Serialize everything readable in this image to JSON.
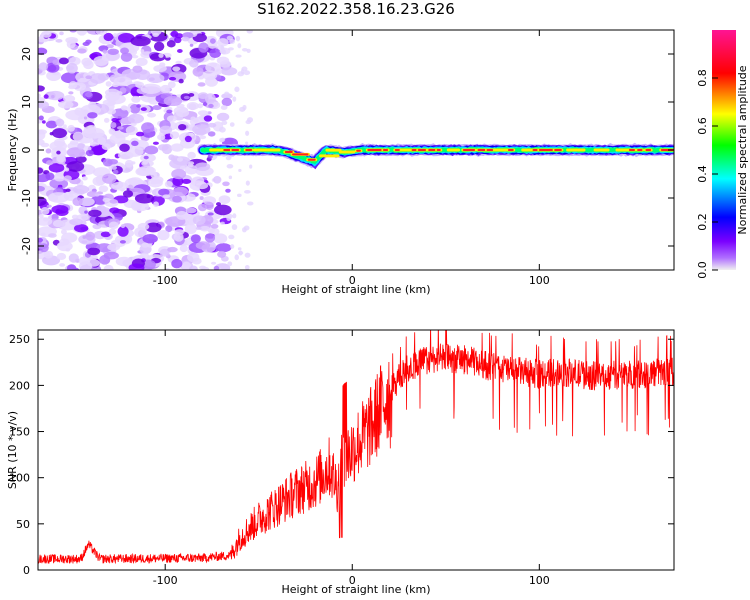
{
  "title": "S162.2022.358.16.23.G26",
  "chart_data": [
    {
      "type": "heatmap",
      "xlabel": "Height of straight line (km)",
      "ylabel": "Frequency (Hz)",
      "xlim": [
        -168,
        172
      ],
      "ylim": [
        -25,
        25
      ],
      "x_ticks": [
        "-100",
        "0",
        "100"
      ],
      "y_ticks": [
        "20",
        "10",
        "0",
        "-10",
        "-20"
      ],
      "colorbar": {
        "label": "Normalized spectral amplitude",
        "range": [
          0.0,
          1.0
        ],
        "ticks": [
          "0.0",
          "0.2",
          "0.4",
          "0.6",
          "0.8"
        ],
        "colors": [
          "#f0f0f0",
          "#7a00ff",
          "#0000ff",
          "#00ffff",
          "#00ff00",
          "#ffff00",
          "#ff0000",
          "#ff1493"
        ]
      },
      "ridge": {
        "start_x": -80,
        "end_x": 172,
        "frequency_hz": [
          [
            -80,
            0
          ],
          [
            -60,
            0
          ],
          [
            -42,
            0
          ],
          [
            -35,
            -0.5
          ],
          [
            -28,
            -1.5
          ],
          [
            -20,
            -2.5
          ],
          [
            -14,
            0
          ],
          [
            -5,
            -0.5
          ],
          [
            5,
            0
          ],
          [
            172,
            0
          ]
        ]
      },
      "noise_region_x": [
        -168,
        -70
      ]
    },
    {
      "type": "line",
      "xlabel": "Height of straight line (km)",
      "ylabel": "SNR (10 * v/v)",
      "xlim": [
        -168,
        172
      ],
      "ylim": [
        0,
        260
      ],
      "x_ticks": [
        "-100",
        "0",
        "100"
      ],
      "y_ticks": [
        "250",
        "200",
        "150",
        "100",
        "50",
        "0"
      ],
      "color": "#ff0000",
      "series": [
        {
          "x": [
            -168,
            -145,
            -141,
            -135,
            -80,
            -65,
            -60,
            -50,
            -40,
            -30,
            -20,
            -12,
            -8,
            -5,
            0,
            10,
            20,
            28,
            35,
            45,
            60,
            75,
            90,
            100,
            110,
            130,
            150,
            172
          ],
          "y": [
            12,
            12,
            28,
            12,
            13,
            16,
            35,
            55,
            70,
            85,
            95,
            112,
            90,
            120,
            130,
            155,
            195,
            215,
            225,
            230,
            228,
            220,
            215,
            212,
            215,
            210,
            212,
            215
          ]
        }
      ]
    }
  ]
}
